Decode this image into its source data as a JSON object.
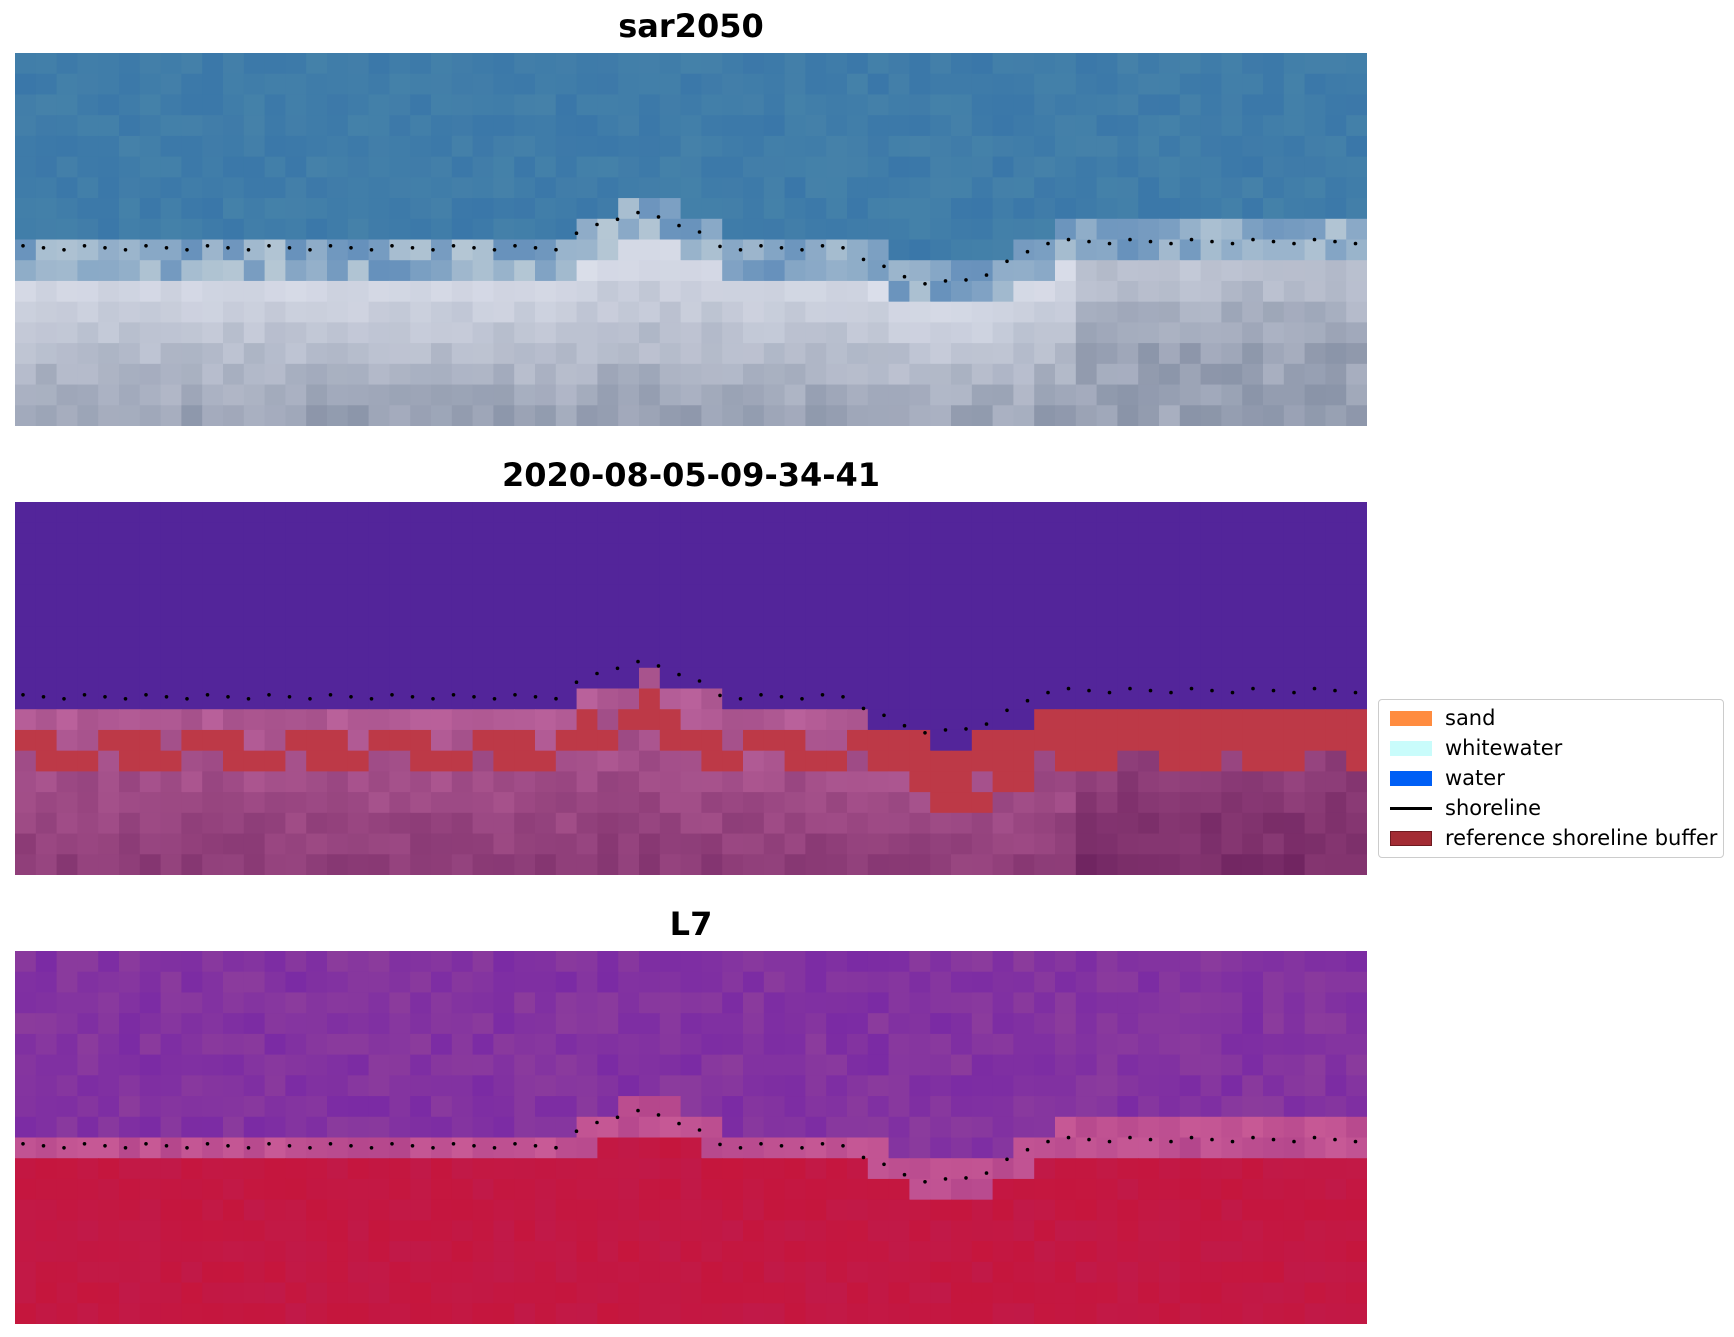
{
  "panels": [
    {
      "title": "sar2050",
      "image": "RGB satellite composite"
    },
    {
      "title": "2020-08-05-09-34-41",
      "image": "classified image with reference shoreline buffer"
    },
    {
      "title": "L7",
      "image": "index image"
    }
  ],
  "legend": {
    "items": [
      {
        "label": "sand",
        "kind": "patch",
        "color": "#ff8c40"
      },
      {
        "label": "whitewater",
        "kind": "patch",
        "color": "#c9fcfb"
      },
      {
        "label": "water",
        "kind": "patch",
        "color": "#005ff5"
      },
      {
        "label": "shoreline",
        "kind": "line",
        "color": "#000000"
      },
      {
        "label": "reference shoreline buffer",
        "kind": "patch",
        "color": "#a32c34"
      }
    ]
  },
  "colors": {
    "rgb_water": "#3a77a9",
    "rgb_foam": "#dfe3ee",
    "rgb_beach": "#8a94a8",
    "class_water": "#53259a",
    "class_land": "#b25b95",
    "class_buffer": "#bd3947",
    "index_water": "#8a3a9d",
    "index_land": "#c01a4a"
  }
}
